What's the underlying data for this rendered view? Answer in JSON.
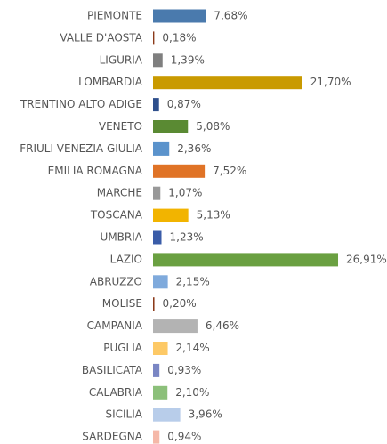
{
  "chart_data": {
    "type": "barh",
    "categories": [
      "PIEMONTE",
      "VALLE D'AOSTA",
      "LIGURIA",
      "LOMBARDIA",
      "TRENTINO ALTO ADIGE",
      "VENETO",
      "FRIULI VENEZIA GIULIA",
      "EMILIA ROMAGNA",
      "MARCHE",
      "TOSCANA",
      "UMBRIA",
      "LAZIO",
      "ABRUZZO",
      "MOLISE",
      "CAMPANIA",
      "PUGLIA",
      "BASILICATA",
      "CALABRIA",
      "SICILIA",
      "SARDEGNA"
    ],
    "values": [
      7.68,
      0.18,
      1.39,
      21.7,
      0.87,
      5.08,
      2.36,
      7.52,
      1.07,
      5.13,
      1.23,
      26.91,
      2.15,
      0.2,
      6.46,
      2.14,
      0.93,
      2.1,
      3.96,
      0.94
    ],
    "value_labels": [
      "7,68%",
      "0,18%",
      "1,39%",
      "21,70%",
      "0,87%",
      "5,08%",
      "2,36%",
      "7,52%",
      "1,07%",
      "5,13%",
      "1,23%",
      "26,91%",
      "2,15%",
      "0,20%",
      "6,46%",
      "2,14%",
      "0,93%",
      "2,10%",
      "3,96%",
      "0,94%"
    ],
    "colors": [
      "#4a7aad",
      "#8b3a1a",
      "#7f7f7f",
      "#c99a00",
      "#2e4f8c",
      "#5a8a33",
      "#5b93cc",
      "#e07326",
      "#999999",
      "#f2b400",
      "#3a5ca8",
      "#6aa041",
      "#7faadc",
      "#8b3a1a",
      "#b3b3b3",
      "#fdc966",
      "#7a86c4",
      "#8cc07a",
      "#b8cdea",
      "#f5b8a8"
    ]
  }
}
